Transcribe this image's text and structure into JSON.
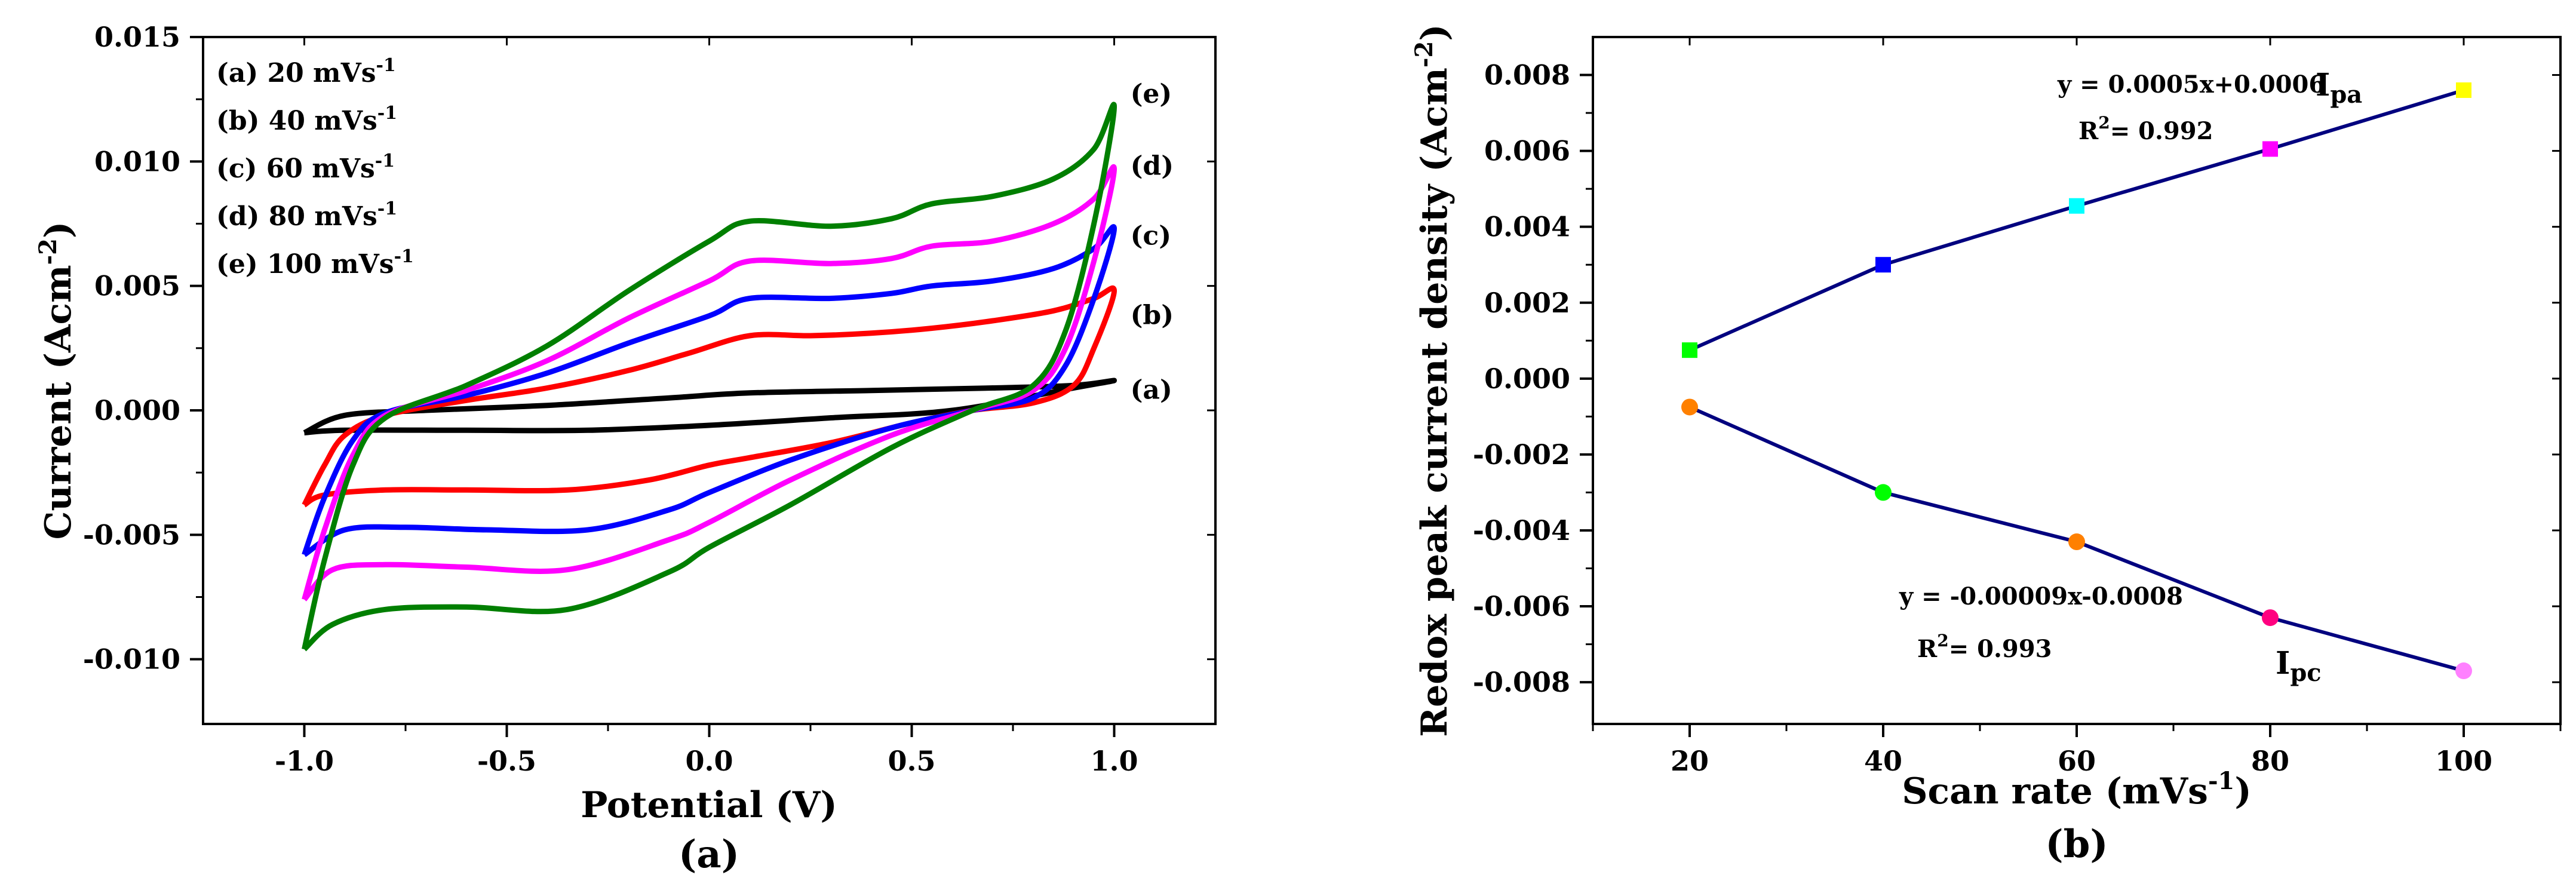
{
  "chart_data": [
    {
      "type": "line",
      "panel_label": "(a)",
      "xlabel": "Potential (V)",
      "ylabel": "Current (Acm",
      "ylabel_sup": "-2",
      "ylabel_end": ")",
      "xlim": [
        -1.25,
        1.25
      ],
      "ylim": [
        -0.0126,
        0.015
      ],
      "xticks": [
        -1.0,
        -0.5,
        0.0,
        0.5,
        1.0
      ],
      "xtick_labels": [
        "-1.0",
        "-0.5",
        "0.0",
        "0.5",
        "1.0"
      ],
      "yticks": [
        -0.01,
        -0.005,
        0.0,
        0.005,
        0.01,
        0.015
      ],
      "ytick_labels": [
        "-0.010",
        "-0.005",
        "0.000",
        "0.005",
        "0.010",
        "0.015"
      ],
      "legend": [
        {
          "text": "(a) 20 mVs",
          "sup": "-1"
        },
        {
          "text": "(b) 40 mVs",
          "sup": "-1"
        },
        {
          "text": "(c) 60 mVs",
          "sup": "-1"
        },
        {
          "text": "(d) 80 mVs",
          "sup": "-1"
        },
        {
          "text": "(e) 100 mVs",
          "sup": "-1"
        }
      ],
      "series": [
        {
          "name": "(a)",
          "label": "(a)",
          "color": "#000000",
          "anodic": [
            [
              -1.0,
              -0.0009
            ],
            [
              -0.9,
              -0.0002
            ],
            [
              -0.7,
              0.0
            ],
            [
              -0.4,
              0.0002
            ],
            [
              -0.1,
              0.0005
            ],
            [
              0.1,
              0.0007
            ],
            [
              0.4,
              0.0008
            ],
            [
              0.7,
              0.0009
            ],
            [
              0.9,
              0.001
            ],
            [
              1.0,
              0.0012
            ]
          ],
          "cathodic": [
            [
              1.0,
              0.0012
            ],
            [
              0.9,
              0.0009
            ],
            [
              0.6,
              0.0
            ],
            [
              0.3,
              -0.0003
            ],
            [
              0.0,
              -0.0006
            ],
            [
              -0.3,
              -0.0008
            ],
            [
              -0.6,
              -0.0008
            ],
            [
              -0.9,
              -0.0008
            ],
            [
              -1.0,
              -0.0009
            ]
          ]
        },
        {
          "name": "(b)",
          "label": "(b)",
          "color": "#ff0000",
          "anodic": [
            [
              -1.0,
              -0.0038
            ],
            [
              -0.95,
              -0.0022
            ],
            [
              -0.9,
              -0.001
            ],
            [
              -0.8,
              -0.0002
            ],
            [
              -0.6,
              0.0004
            ],
            [
              -0.4,
              0.0009
            ],
            [
              -0.2,
              0.0016
            ],
            [
              -0.05,
              0.0023
            ],
            [
              0.1,
              0.003
            ],
            [
              0.25,
              0.003
            ],
            [
              0.4,
              0.0031
            ],
            [
              0.55,
              0.0033
            ],
            [
              0.7,
              0.0036
            ],
            [
              0.85,
              0.004
            ],
            [
              0.95,
              0.0045
            ],
            [
              1.0,
              0.0048
            ]
          ],
          "cathodic": [
            [
              1.0,
              0.0048
            ],
            [
              0.95,
              0.0025
            ],
            [
              0.9,
              0.001
            ],
            [
              0.8,
              0.0003
            ],
            [
              0.65,
              0.0
            ],
            [
              0.5,
              -0.0005
            ],
            [
              0.3,
              -0.0013
            ],
            [
              0.1,
              -0.0019
            ],
            [
              0.0,
              -0.0022
            ],
            [
              -0.15,
              -0.0028
            ],
            [
              -0.35,
              -0.0032
            ],
            [
              -0.6,
              -0.0032
            ],
            [
              -0.8,
              -0.0032
            ],
            [
              -0.95,
              -0.0034
            ],
            [
              -1.0,
              -0.0038
            ]
          ]
        },
        {
          "name": "(c)",
          "label": "(c)",
          "color": "#0000ff",
          "anodic": [
            [
              -1.0,
              -0.0058
            ],
            [
              -0.95,
              -0.0035
            ],
            [
              -0.88,
              -0.0012
            ],
            [
              -0.8,
              -0.0001
            ],
            [
              -0.6,
              0.0006
            ],
            [
              -0.4,
              0.0015
            ],
            [
              -0.2,
              0.0027
            ],
            [
              0.0,
              0.0038
            ],
            [
              0.1,
              0.0045
            ],
            [
              0.3,
              0.0045
            ],
            [
              0.45,
              0.0047
            ],
            [
              0.55,
              0.005
            ],
            [
              0.7,
              0.0052
            ],
            [
              0.85,
              0.0057
            ],
            [
              0.95,
              0.0065
            ],
            [
              1.0,
              0.0073
            ]
          ],
          "cathodic": [
            [
              1.0,
              0.0073
            ],
            [
              0.95,
              0.0045
            ],
            [
              0.88,
              0.0018
            ],
            [
              0.8,
              0.0005
            ],
            [
              0.65,
              0.0
            ],
            [
              0.45,
              -0.0007
            ],
            [
              0.2,
              -0.002
            ],
            [
              0.0,
              -0.0033
            ],
            [
              -0.1,
              -0.004
            ],
            [
              -0.3,
              -0.0048
            ],
            [
              -0.55,
              -0.0048
            ],
            [
              -0.75,
              -0.0047
            ],
            [
              -0.9,
              -0.0048
            ],
            [
              -1.0,
              -0.0058
            ]
          ]
        },
        {
          "name": "(d)",
          "label": "(d)",
          "color": "#ff00ff",
          "anodic": [
            [
              -1.0,
              -0.0076
            ],
            [
              -0.95,
              -0.0048
            ],
            [
              -0.88,
              -0.0018
            ],
            [
              -0.8,
              -0.0002
            ],
            [
              -0.6,
              0.0008
            ],
            [
              -0.4,
              0.002
            ],
            [
              -0.2,
              0.0037
            ],
            [
              0.0,
              0.0052
            ],
            [
              0.1,
              0.006
            ],
            [
              0.3,
              0.0059
            ],
            [
              0.45,
              0.0061
            ],
            [
              0.55,
              0.0066
            ],
            [
              0.7,
              0.0068
            ],
            [
              0.85,
              0.0075
            ],
            [
              0.95,
              0.0085
            ],
            [
              1.0,
              0.0097
            ]
          ],
          "cathodic": [
            [
              1.0,
              0.0097
            ],
            [
              0.95,
              0.006
            ],
            [
              0.88,
              0.0025
            ],
            [
              0.8,
              0.0008
            ],
            [
              0.65,
              0.0
            ],
            [
              0.45,
              -0.001
            ],
            [
              0.2,
              -0.0028
            ],
            [
              0.0,
              -0.0045
            ],
            [
              -0.1,
              -0.0052
            ],
            [
              -0.35,
              -0.0064
            ],
            [
              -0.6,
              -0.0063
            ],
            [
              -0.8,
              -0.0062
            ],
            [
              -0.93,
              -0.0064
            ],
            [
              -1.0,
              -0.0076
            ]
          ]
        },
        {
          "name": "(e)",
          "label": "(e)",
          "color": "#007f00",
          "anodic": [
            [
              -1.0,
              -0.0096
            ],
            [
              -0.95,
              -0.006
            ],
            [
              -0.88,
              -0.0022
            ],
            [
              -0.8,
              -0.0003
            ],
            [
              -0.6,
              0.001
            ],
            [
              -0.4,
              0.0026
            ],
            [
              -0.2,
              0.0048
            ],
            [
              0.0,
              0.0068
            ],
            [
              0.1,
              0.0076
            ],
            [
              0.3,
              0.0074
            ],
            [
              0.45,
              0.0077
            ],
            [
              0.55,
              0.0083
            ],
            [
              0.7,
              0.0086
            ],
            [
              0.85,
              0.0093
            ],
            [
              0.95,
              0.0105
            ],
            [
              1.0,
              0.0122
            ]
          ],
          "cathodic": [
            [
              1.0,
              0.0122
            ],
            [
              0.95,
              0.0075
            ],
            [
              0.88,
              0.0032
            ],
            [
              0.8,
              0.001
            ],
            [
              0.65,
              0.0
            ],
            [
              0.45,
              -0.0015
            ],
            [
              0.2,
              -0.0038
            ],
            [
              0.0,
              -0.0055
            ],
            [
              -0.1,
              -0.0065
            ],
            [
              -0.35,
              -0.008
            ],
            [
              -0.6,
              -0.0079
            ],
            [
              -0.8,
              -0.008
            ],
            [
              -0.93,
              -0.0086
            ],
            [
              -1.0,
              -0.0096
            ]
          ]
        }
      ],
      "curve_labels": [
        {
          "text": "(e)",
          "x": 1.04,
          "y": 0.0127
        },
        {
          "text": "(d)",
          "x": 1.04,
          "y": 0.0098
        },
        {
          "text": "(c)",
          "x": 1.04,
          "y": 0.007
        },
        {
          "text": "(b)",
          "x": 1.04,
          "y": 0.0038
        },
        {
          "text": "(a)",
          "x": 1.04,
          "y": 0.0008
        }
      ]
    },
    {
      "type": "scatter",
      "panel_label": "(b)",
      "xlabel": "Scan rate (mVs",
      "xlabel_sup": "-1",
      "xlabel_end": ")",
      "ylabel": "Redox peak current density (Acm",
      "ylabel_sup": "-2",
      "ylabel_end": ")",
      "xlim": [
        10,
        110
      ],
      "ylim": [
        -0.0091,
        0.009
      ],
      "xticks": [
        20,
        40,
        60,
        80,
        100
      ],
      "xtick_labels": [
        "20",
        "40",
        "60",
        "80",
        "100"
      ],
      "yticks": [
        -0.008,
        -0.006,
        -0.004,
        -0.002,
        0.0,
        0.002,
        0.004,
        0.006,
        0.008
      ],
      "ytick_labels": [
        "-0.008",
        "-0.006",
        "-0.004",
        "-0.002",
        "0.000",
        "0.002",
        "0.004",
        "0.006",
        "0.008"
      ],
      "line_color": "#00007f",
      "series": [
        {
          "name": "Ipa",
          "x": [
            20,
            40,
            60,
            80,
            100
          ],
          "y": [
            0.00075,
            0.003,
            0.00455,
            0.00605,
            0.0076
          ],
          "colors": [
            "#00ff00",
            "#0000ff",
            "#00ffff",
            "#ff00ff",
            "#ffff00"
          ],
          "marker": "square"
        },
        {
          "name": "Ipc",
          "x": [
            20,
            40,
            60,
            80,
            100
          ],
          "y": [
            -0.00075,
            -0.003,
            -0.0043,
            -0.0063,
            -0.0077
          ],
          "colors": [
            "#ff8000",
            "#00ff00",
            "#ff8000",
            "#ff0080",
            "#ff80ff"
          ],
          "marker": "circle"
        }
      ],
      "annotations": {
        "ipa_eq": "y = 0.0005x+0.0006",
        "ipa_label": "I",
        "ipa_sub": "pa",
        "ipa_r2_pre": "R",
        "ipa_r2_sup": "2",
        "ipa_r2_post": "= 0.992",
        "ipc_eq": "y = -0.00009x-0.0008",
        "ipc_r2_pre": "R",
        "ipc_r2_sup": "2",
        "ipc_r2_post": "= 0.993",
        "ipc_label": "I",
        "ipc_sub": "pc"
      }
    }
  ]
}
